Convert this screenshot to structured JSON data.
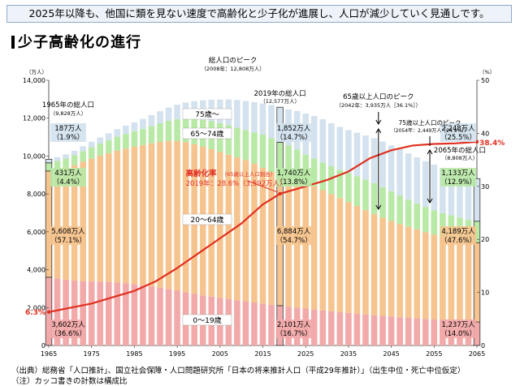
{
  "banner": "2025年以降も、他国に類を見ない速度で高齢化と少子化が進展し、人口が減少していく見通しです。",
  "heading": "少子高齢化の進行",
  "source_line": "（出典）総務省「人口推計」、国立社会保障・人口問題研究所「日本の将来推計人口（平成29年推計）」（出生中位・死亡中位仮定）",
  "note_line": "（注）カッコ書きの計数は構成比",
  "chart_data": {
    "type": "bar",
    "stacked": true,
    "x_range": [
      1965,
      2065
    ],
    "x_ticks": [
      "1965",
      "1975",
      "1985",
      "1995",
      "2005",
      "2015",
      "2025",
      "2035",
      "2045",
      "2055",
      "2065"
    ],
    "y_left_unit": "（万人）",
    "y_left_ticks": [
      "0",
      "2,000",
      "4,000",
      "6,000",
      "8,000",
      "10,000",
      "12,000",
      "14,000"
    ],
    "ylim": [
      0,
      14000
    ],
    "y_right_unit": "（%）",
    "y_right_ticks": [
      "0",
      "10",
      "20",
      "30",
      "40",
      "50"
    ],
    "ylim_right": [
      0,
      50
    ],
    "age_group_labels": [
      "0～19歳",
      "20～64歳",
      "65～74歳",
      "75歳～"
    ],
    "colors": {
      "age0_19": "#f2a9a9",
      "age20_64": "#f6c48e",
      "age65_74": "#b9e9a6",
      "age75": "#d3e2ee",
      "line": "#e03020",
      "highlight_bar_border": "#3a3a3a",
      "axis": "#333333"
    },
    "years": [
      1965,
      1967,
      1969,
      1971,
      1973,
      1975,
      1977,
      1979,
      1981,
      1983,
      1985,
      1987,
      1989,
      1991,
      1993,
      1995,
      1997,
      1999,
      2001,
      2003,
      2005,
      2007,
      2009,
      2011,
      2013,
      2015,
      2017,
      2019,
      2021,
      2023,
      2025,
      2027,
      2029,
      2031,
      2033,
      2035,
      2037,
      2039,
      2041,
      2043,
      2045,
      2047,
      2049,
      2051,
      2053,
      2055,
      2057,
      2059,
      2061,
      2063,
      2065
    ],
    "series": [
      {
        "key": "age0_19",
        "values": [
          3602,
          3540,
          3470,
          3420,
          3400,
          3380,
          3370,
          3350,
          3320,
          3290,
          3240,
          3180,
          3120,
          3050,
          2980,
          2890,
          2800,
          2720,
          2640,
          2580,
          2510,
          2450,
          2380,
          2330,
          2270,
          2210,
          2150,
          2101,
          2050,
          2000,
          1950,
          1900,
          1850,
          1800,
          1760,
          1720,
          1680,
          1640,
          1600,
          1560,
          1530,
          1490,
          1460,
          1430,
          1400,
          1370,
          1340,
          1310,
          1290,
          1260,
          1237
        ]
      },
      {
        "key": "age20_64",
        "values": [
          5608,
          5750,
          5920,
          6100,
          6300,
          6480,
          6650,
          6800,
          6960,
          7100,
          7250,
          7400,
          7550,
          7700,
          7820,
          7900,
          7930,
          7900,
          7850,
          7780,
          7700,
          7620,
          7550,
          7460,
          7320,
          7170,
          7010,
          6884,
          6800,
          6710,
          6620,
          6500,
          6350,
          6190,
          6020,
          5850,
          5680,
          5500,
          5330,
          5180,
          5040,
          4920,
          4800,
          4690,
          4580,
          4480,
          4390,
          4330,
          4270,
          4220,
          4189
        ]
      },
      {
        "key": "age65_74",
        "values": [
          431,
          450,
          480,
          520,
          560,
          600,
          640,
          690,
          740,
          780,
          820,
          860,
          910,
          980,
          1060,
          1150,
          1250,
          1350,
          1420,
          1480,
          1530,
          1560,
          1570,
          1580,
          1660,
          1750,
          1780,
          1740,
          1720,
          1640,
          1500,
          1470,
          1460,
          1470,
          1500,
          1530,
          1570,
          1610,
          1640,
          1620,
          1570,
          1510,
          1440,
          1380,
          1330,
          1290,
          1260,
          1230,
          1190,
          1160,
          1133
        ]
      },
      {
        "key": "age75",
        "values": [
          187,
          200,
          220,
          240,
          260,
          290,
          320,
          360,
          400,
          440,
          470,
          520,
          580,
          640,
          700,
          770,
          850,
          930,
          1030,
          1130,
          1240,
          1360,
          1460,
          1540,
          1590,
          1640,
          1750,
          1852,
          1900,
          2030,
          2170,
          2240,
          2280,
          2270,
          2260,
          2270,
          2300,
          2330,
          2370,
          2400,
          2420,
          2440,
          2440,
          2430,
          2420,
          2410,
          2380,
          2340,
          2300,
          2270,
          2248
        ]
      }
    ],
    "aging_rate_line": {
      "name": "高齢化率",
      "years": [
        1965,
        1970,
        1975,
        1980,
        1985,
        1990,
        1995,
        2000,
        2005,
        2010,
        2015,
        2019,
        2025,
        2030,
        2035,
        2040,
        2045,
        2050,
        2055,
        2060,
        2065
      ],
      "values": [
        6.3,
        7.1,
        7.9,
        9.1,
        10.3,
        12.1,
        14.6,
        17.4,
        20.2,
        23.0,
        26.6,
        28.6,
        30.0,
        31.2,
        32.8,
        35.3,
        36.8,
        37.7,
        38.0,
        38.1,
        38.4
      ]
    },
    "highlight_years": [
      1965,
      2019,
      2065
    ],
    "annotations": {
      "total_1965_title": "1965年の総人口",
      "total_1965_value": "（9,828万人）",
      "peak_title": "総人口のピーク",
      "peak_value": "（2008年：12,808万人）",
      "total_2019_title": "2019年の総人口",
      "total_2019_value": "（12,577万人）",
      "peak65_title": "65歳以上人口のピーク",
      "peak65_value": "（2042年：3,935万人［36.1%］）",
      "peak75_title": "75歳以上人口のピーク",
      "peak75_value": "（2054年：2,449万人［24.9%］）",
      "total_2065_title": "2065年の総人口",
      "total_2065_value": "（8,808万人）",
      "aging_title": "高齢化率",
      "aging_sub": "（65歳以上人口割合）",
      "aging_2019": "2019年：28.6%（3,592万人）",
      "start_rate": "6.3%",
      "end_rate": "38.4%"
    },
    "labels_1965": [
      {
        "k": "age75",
        "a": "187万人",
        "b": "（1.9%）"
      },
      {
        "k": "age65_74",
        "a": "431万人",
        "b": "（4.4%）"
      },
      {
        "k": "age20_64",
        "a": "5,608万人",
        "b": "（57.1%）"
      },
      {
        "k": "age0_19",
        "a": "3,602万人",
        "b": "（36.6%）"
      }
    ],
    "labels_2019": [
      {
        "k": "age75",
        "a": "1,852万人",
        "b": "（14.7%）"
      },
      {
        "k": "age65_74",
        "a": "1,740万人",
        "b": "（13.8%）"
      },
      {
        "k": "age20_64",
        "a": "6,884万人",
        "b": "（54.7%）"
      },
      {
        "k": "age0_19",
        "a": "2,101万人",
        "b": "（16.7%）"
      }
    ],
    "labels_2065": [
      {
        "k": "age75",
        "a": "2,248万人",
        "b": "（25.5%）"
      },
      {
        "k": "age65_74",
        "a": "1,133万人",
        "b": "（12.9%）"
      },
      {
        "k": "age20_64",
        "a": "4,189万人",
        "b": "（47.6%）"
      },
      {
        "k": "age0_19",
        "a": "1,237万人",
        "b": "（14.0%）"
      }
    ]
  }
}
